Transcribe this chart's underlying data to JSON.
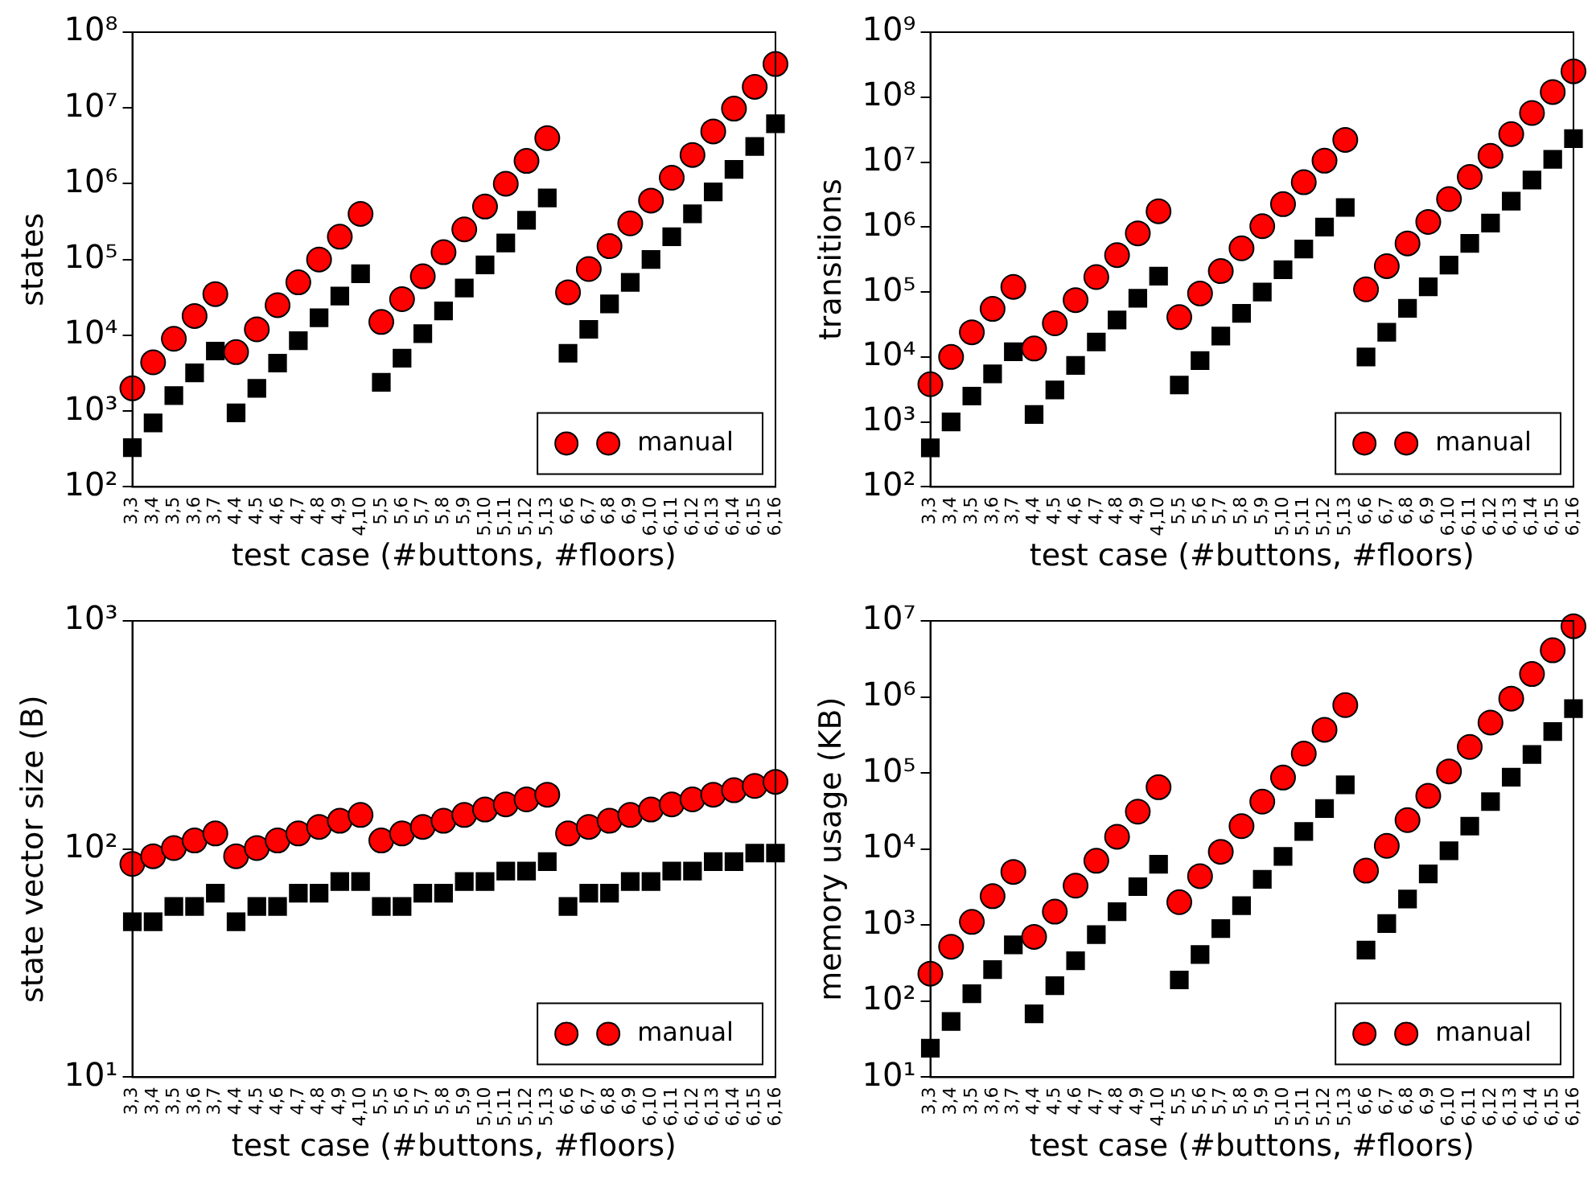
{
  "chart_data": [
    {
      "type": "scatter",
      "xlabel": "test case (#buttons, #floors)",
      "ylabel": "states",
      "log": "y",
      "legend": "bottom right",
      "grid": false,
      "categories": [
        "3,3",
        "3,4",
        "3,5",
        "3,6",
        "3,7",
        "4,4",
        "4,5",
        "4,6",
        "4,7",
        "4,8",
        "4,9",
        "4,10",
        "5,5",
        "5,6",
        "5,7",
        "5,8",
        "5,9",
        "5,10",
        "5,11",
        "5,12",
        "5,13",
        "6,6",
        "6,7",
        "6,8",
        "6,9",
        "6,10",
        "6,11",
        "6,12",
        "6,13",
        "6,14",
        "6,15",
        "6,16"
      ],
      "ylim": [
        100,
        100000000
      ],
      "yticks": [
        {
          "value": 100,
          "label": "10²"
        },
        {
          "value": 1000,
          "label": "10³"
        },
        {
          "value": 10000,
          "label": "10⁴"
        },
        {
          "value": 100000,
          "label": "10⁵"
        },
        {
          "value": 1000000,
          "label": "10⁶"
        },
        {
          "value": 10000000,
          "label": "10⁷"
        },
        {
          "value": 100000000,
          "label": "10⁸"
        }
      ],
      "series": [
        {
          "name": "manual",
          "color": "#ff0000",
          "marker": "circle",
          "values": [
            2000,
            4400,
            9000,
            18000,
            35000,
            6000,
            12000,
            25000,
            50000,
            100000,
            200000,
            400000,
            15000,
            30000,
            60000,
            125000,
            250000,
            500000,
            1000000,
            2000000,
            4000000,
            37000,
            75000,
            150000,
            300000,
            600000,
            1200000,
            2400000,
            4900000,
            9800000,
            19000000,
            38000000
          ]
        },
        {
          "color": "#000000",
          "marker": "square",
          "values": [
            330,
            700,
            1600,
            3200,
            6200,
            950,
            2000,
            4300,
            8500,
            17000,
            33000,
            65000,
            2400,
            5000,
            10500,
            21000,
            42000,
            85000,
            165000,
            330000,
            650000,
            5800,
            12000,
            26000,
            50000,
            100000,
            200000,
            400000,
            780000,
            1550000,
            3100000,
            6200000
          ]
        }
      ]
    },
    {
      "type": "scatter",
      "xlabel": "test case (#buttons, #floors)",
      "ylabel": "transitions",
      "log": "y",
      "legend": "bottom right",
      "grid": false,
      "categories": [
        "3,3",
        "3,4",
        "3,5",
        "3,6",
        "3,7",
        "4,4",
        "4,5",
        "4,6",
        "4,7",
        "4,8",
        "4,9",
        "4,10",
        "5,5",
        "5,6",
        "5,7",
        "5,8",
        "5,9",
        "5,10",
        "5,11",
        "5,12",
        "5,13",
        "6,6",
        "6,7",
        "6,8",
        "6,9",
        "6,10",
        "6,11",
        "6,12",
        "6,13",
        "6,14",
        "6,15",
        "6,16"
      ],
      "ylim": [
        100,
        1000000000
      ],
      "yticks": [
        {
          "value": 100,
          "label": "10²"
        },
        {
          "value": 1000,
          "label": "10³"
        },
        {
          "value": 10000,
          "label": "10⁴"
        },
        {
          "value": 100000,
          "label": "10⁵"
        },
        {
          "value": 1000000,
          "label": "10⁶"
        },
        {
          "value": 10000000,
          "label": "10⁷"
        },
        {
          "value": 100000000,
          "label": "10⁸"
        },
        {
          "value": 1000000000,
          "label": "10⁹"
        }
      ],
      "series": [
        {
          "name": "manual",
          "color": "#ff0000",
          "marker": "circle",
          "values": [
            3800,
            10000,
            24000,
            55000,
            120000,
            13500,
            33000,
            75000,
            170000,
            370000,
            800000,
            1750000,
            41000,
            95000,
            210000,
            470000,
            1030000,
            2250000,
            4900000,
            10500000,
            22000000,
            110000,
            250000,
            560000,
            1200000,
            2700000,
            5900000,
            12500000,
            27000000,
            57000000,
            120000000,
            250000000
          ]
        },
        {
          "color": "#000000",
          "marker": "square",
          "values": [
            400,
            1000,
            2500,
            5500,
            12000,
            1300,
            3100,
            7400,
            17000,
            37000,
            80000,
            175000,
            3700,
            8800,
            21000,
            47000,
            100000,
            220000,
            460000,
            1000000,
            2000000,
            10000,
            24000,
            56000,
            120000,
            260000,
            560000,
            1150000,
            2500000,
            5300000,
            11000000,
            23000000
          ]
        }
      ]
    },
    {
      "type": "scatter",
      "xlabel": "test case (#buttons, #floors)",
      "ylabel": "state vector size (B)",
      "log": "y",
      "legend": "bottom right",
      "grid": false,
      "categories": [
        "3,3",
        "3,4",
        "3,5",
        "3,6",
        "3,7",
        "4,4",
        "4,5",
        "4,6",
        "4,7",
        "4,8",
        "4,9",
        "4,10",
        "5,5",
        "5,6",
        "5,7",
        "5,8",
        "5,9",
        "5,10",
        "5,11",
        "5,12",
        "5,13",
        "6,6",
        "6,7",
        "6,8",
        "6,9",
        "6,10",
        "6,11",
        "6,12",
        "6,13",
        "6,14",
        "6,15",
        "6,16"
      ],
      "ylim": [
        10,
        1000
      ],
      "yticks": [
        {
          "value": 10,
          "label": "10¹"
        },
        {
          "value": 100,
          "label": "10²"
        },
        {
          "value": 1000,
          "label": "10³"
        }
      ],
      "series": [
        {
          "name": "manual",
          "color": "#ff0000",
          "marker": "circle",
          "values": [
            86,
            93,
            101,
            109,
            117,
            93,
            101,
            109,
            117,
            125,
            133,
            141,
            109,
            117,
            125,
            133,
            141,
            149,
            157,
            165,
            173,
            117,
            125,
            133,
            141,
            149,
            157,
            165,
            173,
            181,
            189,
            197
          ]
        },
        {
          "color": "#000000",
          "marker": "square",
          "values": [
            48,
            48,
            56,
            56,
            64,
            48,
            56,
            56,
            64,
            64,
            72,
            72,
            56,
            56,
            64,
            64,
            72,
            72,
            80,
            80,
            88,
            56,
            64,
            64,
            72,
            72,
            80,
            80,
            88,
            88,
            96,
            96
          ]
        }
      ]
    },
    {
      "type": "scatter",
      "xlabel": "test case (#buttons, #floors)",
      "ylabel": "memory usage (KB)",
      "log": "y",
      "legend": "bottom right",
      "grid": false,
      "categories": [
        "3,3",
        "3,4",
        "3,5",
        "3,6",
        "3,7",
        "4,4",
        "4,5",
        "4,6",
        "4,7",
        "4,8",
        "4,9",
        "4,10",
        "5,5",
        "5,6",
        "5,7",
        "5,8",
        "5,9",
        "5,10",
        "5,11",
        "5,12",
        "5,13",
        "6,6",
        "6,7",
        "6,8",
        "6,9",
        "6,10",
        "6,11",
        "6,12",
        "6,13",
        "6,14",
        "6,15",
        "6,16"
      ],
      "ylim": [
        10,
        10000000
      ],
      "yticks": [
        {
          "value": 10,
          "label": "10¹"
        },
        {
          "value": 100,
          "label": "10²"
        },
        {
          "value": 1000,
          "label": "10³"
        },
        {
          "value": 10000,
          "label": "10⁴"
        },
        {
          "value": 100000,
          "label": "10⁵"
        },
        {
          "value": 1000000,
          "label": "10⁶"
        },
        {
          "value": 10000000,
          "label": "10⁷"
        }
      ],
      "series": [
        {
          "name": "manual",
          "color": "#ff0000",
          "marker": "circle",
          "values": [
            230,
            520,
            1100,
            2400,
            5000,
            700,
            1500,
            3300,
            7000,
            14500,
            31000,
            65000,
            2000,
            4400,
            9200,
            20000,
            42000,
            87000,
            180000,
            370000,
            780000,
            5200,
            11000,
            24000,
            50000,
            105000,
            220000,
            460000,
            950000,
            2000000,
            4100000,
            8500000
          ]
        },
        {
          "color": "#000000",
          "marker": "square",
          "values": [
            24,
            54,
            125,
            260,
            550,
            68,
            160,
            340,
            750,
            1500,
            3200,
            6300,
            190,
            410,
            900,
            1800,
            4000,
            8000,
            17000,
            34000,
            70000,
            470,
            1050,
            2200,
            4700,
            9500,
            20000,
            42000,
            88000,
            175000,
            350000,
            700000
          ]
        }
      ]
    }
  ]
}
